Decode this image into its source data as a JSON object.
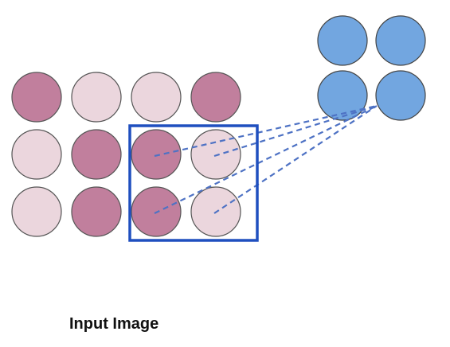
{
  "caption": "Input Image",
  "colors": {
    "dark_pixel": "#c17f9d",
    "light_pixel": "#ebd6dd",
    "pixel_stroke": "#555555",
    "output_node": "#72a6e0",
    "output_stroke": "#444444",
    "kernel_box": "#1f4fbf",
    "connection_line": "#4e72c4"
  },
  "input_grid": {
    "rows": 3,
    "cols": 4,
    "cells": [
      [
        "dark",
        "light",
        "light",
        "dark"
      ],
      [
        "light",
        "dark",
        "dark",
        "light"
      ],
      [
        "light",
        "dark",
        "dark",
        "light"
      ]
    ]
  },
  "kernel_window": {
    "rows": [
      1,
      2
    ],
    "cols": [
      2,
      3
    ]
  },
  "output_grid": {
    "rows": 2,
    "cols": 2,
    "connected_node": [
      1,
      1
    ]
  }
}
